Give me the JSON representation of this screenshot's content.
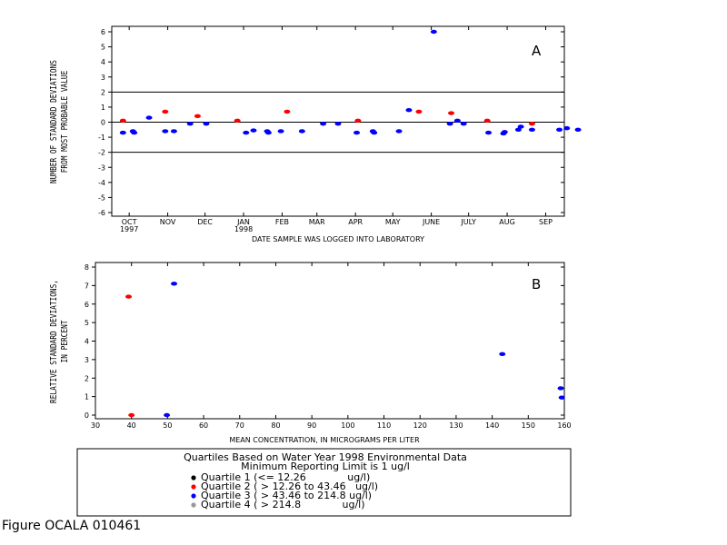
{
  "colors": {
    "q1": "#000000",
    "q2": "#ff0000",
    "q3": "#0000ff",
    "q4": "#999999"
  },
  "chart_data": [
    {
      "type": "scatter",
      "panel_label": "A",
      "xlabel": "DATE SAMPLE WAS LOGGED INTO LABORATORY",
      "ylabel_lines": [
        "NUMBER OF STANDARD DEVIATIONS",
        "FROM MOST PROBABLE VALUE"
      ],
      "xlim": [
        "1997-10-01",
        "1998-09-30"
      ],
      "ylim": [
        -6,
        6
      ],
      "yticks": [
        -6,
        -5,
        -4,
        -3,
        -2,
        -1,
        0,
        1,
        2,
        3,
        4,
        5,
        6
      ],
      "ytick_labels": [
        "-6",
        "-5",
        "-4",
        "-3",
        "-2",
        "-1",
        "0",
        "1",
        "2",
        "3",
        "4",
        "5",
        "6"
      ],
      "month_ticks": [
        {
          "date": "1997-10-15",
          "label": "OCT",
          "year": "1997"
        },
        {
          "date": "1997-11-15",
          "label": "NOV",
          "year": ""
        },
        {
          "date": "1997-12-15",
          "label": "DEC",
          "year": ""
        },
        {
          "date": "1998-01-15",
          "label": "JAN",
          "year": "1998"
        },
        {
          "date": "1998-02-15",
          "label": "FEB",
          "year": ""
        },
        {
          "date": "1998-03-15",
          "label": "MAR",
          "year": ""
        },
        {
          "date": "1998-04-15",
          "label": "APR",
          "year": ""
        },
        {
          "date": "1998-05-15",
          "label": "MAY",
          "year": ""
        },
        {
          "date": "1998-06-15",
          "label": "JUNE",
          "year": ""
        },
        {
          "date": "1998-07-15",
          "label": "JULY",
          "year": ""
        },
        {
          "date": "1998-08-15",
          "label": "AUG",
          "year": ""
        },
        {
          "date": "1998-09-15",
          "label": "SEP",
          "year": ""
        }
      ],
      "hlines": [
        2,
        0,
        -2
      ],
      "points": [
        {
          "date": "1997-10-10",
          "y": 0.1,
          "quartile": 2
        },
        {
          "date": "1997-10-10",
          "y": -0.7,
          "quartile": 3
        },
        {
          "date": "1997-10-18",
          "y": -0.6,
          "quartile": 3
        },
        {
          "date": "1997-10-19",
          "y": -0.7,
          "quartile": 3
        },
        {
          "date": "1997-10-31",
          "y": 0.3,
          "quartile": 3
        },
        {
          "date": "1997-11-13",
          "y": 0.7,
          "quartile": 2
        },
        {
          "date": "1997-11-13",
          "y": -0.6,
          "quartile": 3
        },
        {
          "date": "1997-11-20",
          "y": -0.6,
          "quartile": 3
        },
        {
          "date": "1997-12-03",
          "y": -0.1,
          "quartile": 3
        },
        {
          "date": "1997-12-09",
          "y": 0.4,
          "quartile": 2
        },
        {
          "date": "1997-12-16",
          "y": -0.1,
          "quartile": 3
        },
        {
          "date": "1998-01-10",
          "y": 0.1,
          "quartile": 2
        },
        {
          "date": "1998-01-17",
          "y": -0.7,
          "quartile": 3
        },
        {
          "date": "1998-01-23",
          "y": -0.55,
          "quartile": 3
        },
        {
          "date": "1998-02-03",
          "y": -0.6,
          "quartile": 3
        },
        {
          "date": "1998-02-04",
          "y": -0.7,
          "quartile": 3
        },
        {
          "date": "1998-02-14",
          "y": -0.6,
          "quartile": 3
        },
        {
          "date": "1998-02-19",
          "y": 0.7,
          "quartile": 2
        },
        {
          "date": "1998-03-03",
          "y": -0.6,
          "quartile": 3
        },
        {
          "date": "1998-03-20",
          "y": -0.1,
          "quartile": 3
        },
        {
          "date": "1998-04-01",
          "y": -0.1,
          "quartile": 3
        },
        {
          "date": "1998-04-16",
          "y": -0.7,
          "quartile": 3
        },
        {
          "date": "1998-04-17",
          "y": 0.1,
          "quartile": 2
        },
        {
          "date": "1998-04-29",
          "y": -0.6,
          "quartile": 3
        },
        {
          "date": "1998-04-30",
          "y": -0.7,
          "quartile": 3
        },
        {
          "date": "1998-05-20",
          "y": -0.6,
          "quartile": 3
        },
        {
          "date": "1998-05-28",
          "y": 0.8,
          "quartile": 3
        },
        {
          "date": "1998-06-05",
          "y": 0.7,
          "quartile": 2
        },
        {
          "date": "1998-06-17",
          "y": 6.0,
          "quartile": 3
        },
        {
          "date": "1998-06-30",
          "y": -0.1,
          "quartile": 3
        },
        {
          "date": "1998-07-01",
          "y": 0.6,
          "quartile": 2
        },
        {
          "date": "1998-07-06",
          "y": 0.1,
          "quartile": 3
        },
        {
          "date": "1998-07-11",
          "y": -0.1,
          "quartile": 3
        },
        {
          "date": "1998-07-30",
          "y": 0.1,
          "quartile": 2
        },
        {
          "date": "1998-07-31",
          "y": -0.7,
          "quartile": 3
        },
        {
          "date": "1998-08-12",
          "y": -0.75,
          "quartile": 3
        },
        {
          "date": "1998-08-13",
          "y": -0.65,
          "quartile": 3
        },
        {
          "date": "1998-08-24",
          "y": -0.5,
          "quartile": 3
        },
        {
          "date": "1998-08-26",
          "y": -0.3,
          "quartile": 3
        },
        {
          "date": "1998-09-04",
          "y": -0.1,
          "quartile": 2
        },
        {
          "date": "1998-09-04",
          "y": -0.5,
          "quartile": 3
        },
        {
          "date": "1998-09-26",
          "y": -0.5,
          "quartile": 3
        },
        {
          "date": "1998-10-02",
          "y": -0.4,
          "quartile": 3
        },
        {
          "date": "1998-10-11",
          "y": -0.5,
          "quartile": 3
        }
      ]
    },
    {
      "type": "scatter",
      "panel_label": "B",
      "xlabel": "MEAN CONCENTRATION, IN MICROGRAMS PER LITER",
      "ylabel_lines": [
        "RELATIVE STANDARD DEVIATIONS,",
        "IN PERCENT"
      ],
      "xlim": [
        30,
        160
      ],
      "ylim": [
        0,
        8
      ],
      "xticks": [
        30,
        40,
        50,
        60,
        70,
        80,
        90,
        100,
        110,
        120,
        130,
        140,
        150,
        160
      ],
      "xtick_labels": [
        "30",
        "40",
        "50",
        "60",
        "70",
        "80",
        "90",
        "100",
        "110",
        "120",
        "130",
        "140",
        "150",
        "160"
      ],
      "yticks": [
        0,
        1,
        2,
        3,
        4,
        5,
        6,
        7,
        8
      ],
      "ytick_labels": [
        "0",
        "1",
        "2",
        "3",
        "4",
        "5",
        "6",
        "7",
        "8"
      ],
      "points": [
        {
          "x": 39.2,
          "y": 6.4,
          "quartile": 2
        },
        {
          "x": 40.0,
          "y": 0.0,
          "quartile": 2
        },
        {
          "x": 49.8,
          "y": 0.0,
          "quartile": 3
        },
        {
          "x": 51.8,
          "y": 7.1,
          "quartile": 3
        },
        {
          "x": 142.8,
          "y": 3.3,
          "quartile": 3
        },
        {
          "x": 159.0,
          "y": 1.45,
          "quartile": 3
        },
        {
          "x": 159.3,
          "y": 0.95,
          "quartile": 3
        }
      ]
    }
  ],
  "legend": {
    "title_line1": "Quartiles Based on Water Year 1998 Environmental Data",
    "title_line2": "Minimum Reporting Limit is 1 ug/l",
    "items": [
      {
        "label": "Quartile 1 (<= 12.26             ug/l)",
        "quartile": 1
      },
      {
        "label": "Quartile 2 ( > 12.26 to 43.46   ug/l)",
        "quartile": 2
      },
      {
        "label": "Quartile 3 ( > 43.46 to 214.8 ug/l)",
        "quartile": 3
      },
      {
        "label": "Quartile 4 ( > 214.8             ug/l)",
        "quartile": 4
      }
    ]
  },
  "caption": "Figure OCALA 010461"
}
